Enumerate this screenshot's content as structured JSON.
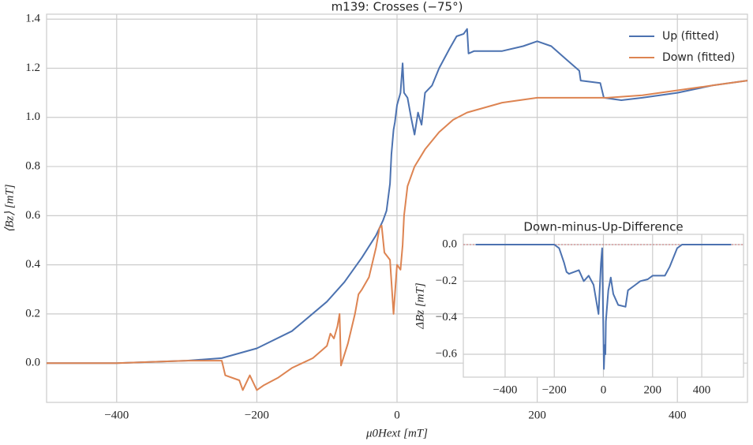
{
  "chart_data": [
    {
      "type": "line",
      "title": "m139: Crosses (−75°)",
      "xlabel": "μ0Hext [mT]",
      "ylabel": "⟨Bz⟩ [mT]",
      "xlim": [
        -500,
        500
      ],
      "ylim": [
        -0.16,
        1.42
      ],
      "xticks": [
        {
          "value": -400,
          "label": "−400"
        },
        {
          "value": -200,
          "label": "−200"
        },
        0,
        200,
        400
      ],
      "yticks": [
        {
          "value": 0,
          "label": "0.0"
        },
        0.2,
        0.4,
        0.6,
        0.8,
        {
          "value": 1,
          "label": "1.0"
        },
        1.2,
        1.4
      ],
      "grid": true,
      "legend": "upper right",
      "series": [
        {
          "name": "Up (fitted)",
          "color": "#4c72b0",
          "x": [
            -500,
            -400,
            -300,
            -250,
            -200,
            -150,
            -100,
            -75,
            -50,
            -30,
            -20,
            -15,
            -10,
            -8,
            -5,
            -3,
            0,
            5,
            8,
            10,
            15,
            20,
            25,
            30,
            35,
            40,
            50,
            60,
            75,
            85,
            95,
            100,
            102,
            110,
            150,
            180,
            200,
            220,
            240,
            260,
            262,
            290,
            295,
            320,
            350,
            400,
            450,
            500
          ],
          "values": [
            0.0,
            0.0,
            0.01,
            0.02,
            0.06,
            0.13,
            0.25,
            0.33,
            0.43,
            0.52,
            0.58,
            0.62,
            0.73,
            0.85,
            0.95,
            0.98,
            1.05,
            1.1,
            1.22,
            1.1,
            1.08,
            1.0,
            0.93,
            1.02,
            0.97,
            1.1,
            1.13,
            1.2,
            1.28,
            1.33,
            1.34,
            1.36,
            1.26,
            1.27,
            1.27,
            1.29,
            1.31,
            1.29,
            1.24,
            1.19,
            1.15,
            1.14,
            1.08,
            1.07,
            1.08,
            1.1,
            1.13,
            1.15
          ]
        },
        {
          "name": "Down (fitted)",
          "color": "#dd8452",
          "x": [
            -500,
            -400,
            -300,
            -250,
            -245,
            -225,
            -220,
            -210,
            -200,
            -190,
            -170,
            -150,
            -120,
            -100,
            -95,
            -90,
            -85,
            -82,
            -80,
            -70,
            -60,
            -55,
            -50,
            -40,
            -30,
            -25,
            -22,
            -18,
            -10,
            -5,
            -2,
            0,
            5,
            8,
            10,
            15,
            25,
            40,
            60,
            80,
            100,
            150,
            200,
            250,
            300,
            350,
            400,
            450,
            500
          ],
          "values": [
            0.0,
            0.0,
            0.01,
            0.01,
            -0.05,
            -0.07,
            -0.11,
            -0.05,
            -0.11,
            -0.09,
            -0.06,
            -0.02,
            0.02,
            0.07,
            0.12,
            0.1,
            0.15,
            0.2,
            -0.01,
            0.08,
            0.2,
            0.28,
            0.3,
            0.35,
            0.47,
            0.55,
            0.56,
            0.45,
            0.42,
            0.2,
            0.32,
            0.4,
            0.38,
            0.48,
            0.6,
            0.72,
            0.8,
            0.87,
            0.94,
            0.99,
            1.02,
            1.06,
            1.08,
            1.08,
            1.08,
            1.09,
            1.11,
            1.13,
            1.15
          ]
        }
      ]
    },
    {
      "type": "line",
      "title": "Down-minus-Up-Difference",
      "ylabel": "ΔBz [mT]",
      "xlim": [
        -570,
        570
      ],
      "ylim": [
        -0.725,
        0.056
      ],
      "xticks": [
        {
          "value": -400,
          "label": "−400"
        },
        {
          "value": -200,
          "label": "−200"
        },
        0,
        200,
        400
      ],
      "yticks": [
        {
          "value": 0,
          "label": "0.0"
        },
        {
          "value": -0.2,
          "label": "−0.2"
        },
        {
          "value": -0.4,
          "label": "−0.4"
        },
        {
          "value": -0.6,
          "label": "−0.6"
        }
      ],
      "grid": true,
      "reference_line": {
        "y": 0,
        "color": "#c44e52"
      },
      "series": [
        {
          "color": "#4c72b0",
          "x": [
            -520,
            -300,
            -200,
            -180,
            -160,
            -150,
            -140,
            -100,
            -80,
            -60,
            -40,
            -20,
            -10,
            -5,
            0,
            2,
            5,
            8,
            10,
            20,
            30,
            40,
            60,
            90,
            100,
            130,
            150,
            180,
            200,
            250,
            270,
            300,
            320,
            400,
            520
          ],
          "values": [
            0,
            0,
            0,
            -0.02,
            -0.1,
            -0.15,
            -0.16,
            -0.14,
            -0.2,
            -0.17,
            -0.22,
            -0.38,
            -0.1,
            -0.02,
            -0.5,
            -0.68,
            -0.55,
            -0.6,
            -0.42,
            -0.25,
            -0.18,
            -0.27,
            -0.33,
            -0.34,
            -0.25,
            -0.22,
            -0.2,
            -0.19,
            -0.17,
            -0.17,
            -0.12,
            -0.02,
            0,
            0,
            0
          ]
        }
      ]
    }
  ]
}
